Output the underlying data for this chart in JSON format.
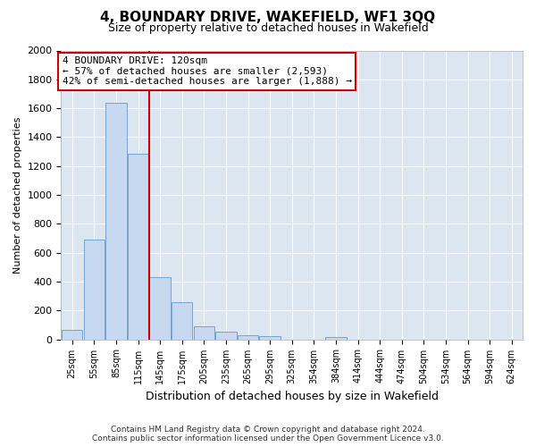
{
  "title": "4, BOUNDARY DRIVE, WAKEFIELD, WF1 3QQ",
  "subtitle": "Size of property relative to detached houses in Wakefield",
  "xlabel": "Distribution of detached houses by size in Wakefield",
  "ylabel": "Number of detached properties",
  "bar_labels": [
    "25sqm",
    "55sqm",
    "85sqm",
    "115sqm",
    "145sqm",
    "175sqm",
    "205sqm",
    "235sqm",
    "265sqm",
    "295sqm",
    "325sqm",
    "354sqm",
    "384sqm",
    "414sqm",
    "444sqm",
    "474sqm",
    "504sqm",
    "534sqm",
    "564sqm",
    "594sqm",
    "624sqm"
  ],
  "bar_values": [
    65,
    690,
    1635,
    1285,
    430,
    255,
    90,
    50,
    30,
    20,
    0,
    0,
    15,
    0,
    0,
    0,
    0,
    0,
    0,
    0,
    0
  ],
  "bar_color": "#c6d9f0",
  "bar_edge_color": "#6699cc",
  "vline_color": "#cc0000",
  "vline_index": 3,
  "annotation_title": "4 BOUNDARY DRIVE: 120sqm",
  "annotation_line1": "← 57% of detached houses are smaller (2,593)",
  "annotation_line2": "42% of semi-detached houses are larger (1,888) →",
  "annotation_box_color": "#ffffff",
  "annotation_box_edge": "#cc0000",
  "ylim": [
    0,
    2000
  ],
  "yticks": [
    0,
    200,
    400,
    600,
    800,
    1000,
    1200,
    1400,
    1600,
    1800,
    2000
  ],
  "footer_line1": "Contains HM Land Registry data © Crown copyright and database right 2024.",
  "footer_line2": "Contains public sector information licensed under the Open Government Licence v3.0.",
  "bg_color": "#dce6f1",
  "fig_bg_color": "#ffffff",
  "grid_color": "#ffffff"
}
